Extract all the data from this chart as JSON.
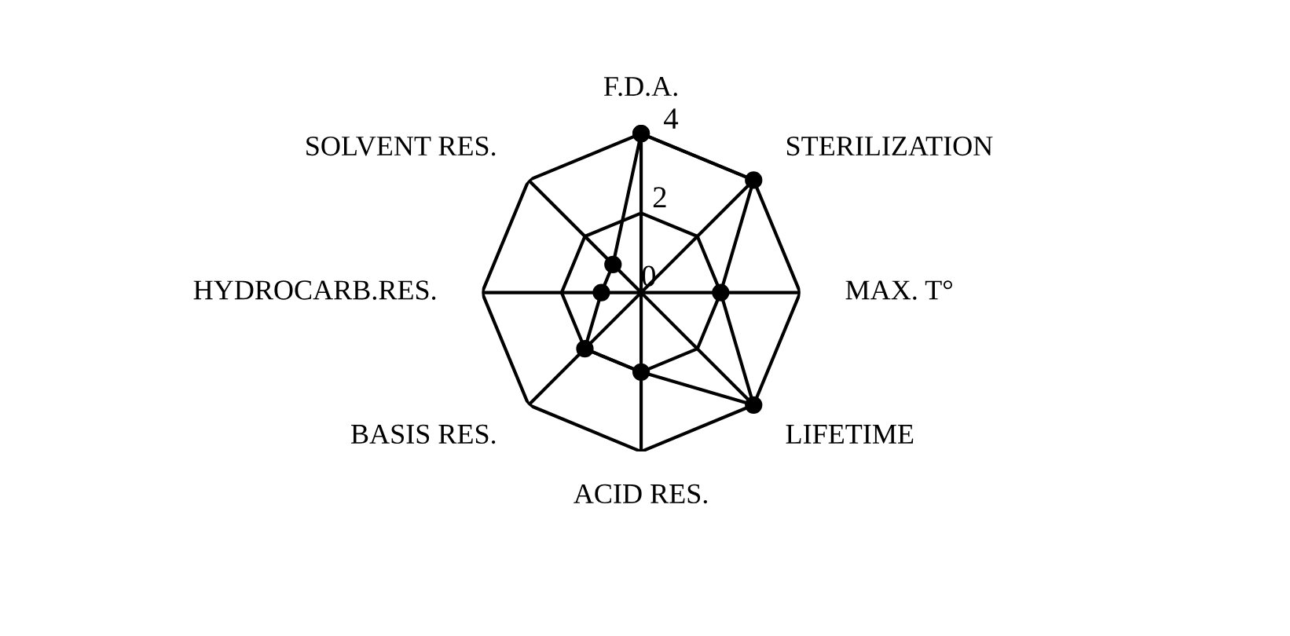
{
  "chart_data": {
    "type": "radar",
    "categories": [
      "F.D.A.",
      "STERILIZATION",
      "MAX. T°",
      "LIFETIME",
      "ACID RES.",
      "BASIS RES.",
      "HYDROCARB.RES.",
      "SOLVENT RES."
    ],
    "series": [
      {
        "color": "#000000",
        "values": [
          4,
          4,
          2,
          4,
          2,
          2,
          1,
          1
        ]
      }
    ],
    "ylim": [
      0,
      4
    ],
    "yticks": [
      0,
      2,
      4
    ],
    "grid": true,
    "marker": "circle",
    "line_style": "solid"
  }
}
